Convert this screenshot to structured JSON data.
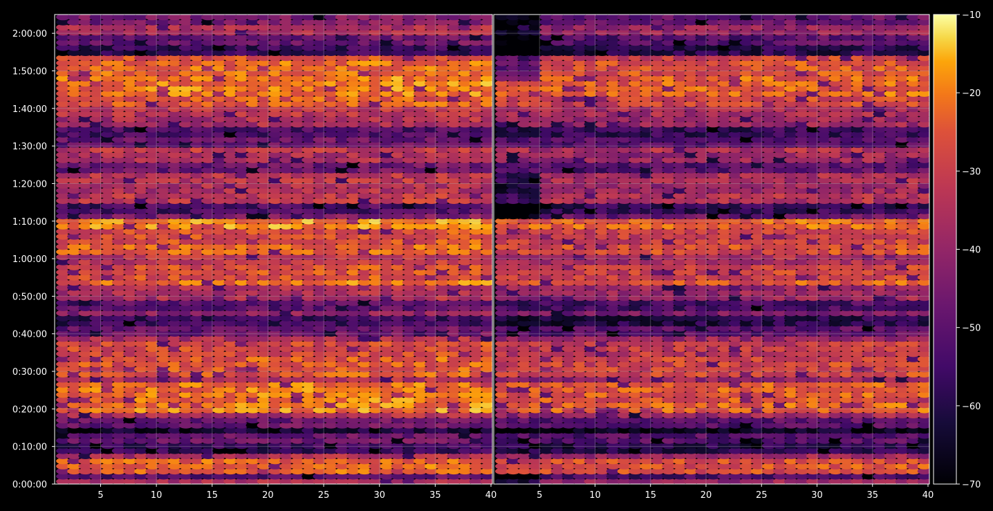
{
  "chart_data": {
    "type": "heatmap",
    "title": "",
    "panels": [
      {
        "name": "",
        "x_min": 1,
        "x_max": 40
      },
      {
        "name": "",
        "x_min": 1,
        "x_max": 40
      }
    ],
    "x_ticks": [
      5,
      10,
      15,
      20,
      25,
      30,
      35,
      40
    ],
    "y_ticks": [
      "0:00:00",
      "0:10:00",
      "0:20:00",
      "0:30:00",
      "0:40:00",
      "0:50:00",
      "1:00:00",
      "1:10:00",
      "1:20:00",
      "1:30:00",
      "1:40:00",
      "1:50:00",
      "2:00:00"
    ],
    "y_range_seconds": [
      0,
      7500
    ],
    "colorbar": {
      "colormap": "inferno",
      "ticks": [
        -10,
        -20,
        -30,
        -40,
        -50,
        -60,
        -70
      ],
      "tick_labels": [
        "−10",
        "−20",
        "−30",
        "−40",
        "−50",
        "−60",
        "−70"
      ],
      "range": [
        -70,
        -10
      ]
    },
    "grid": true,
    "colors": {
      "background": "#000000",
      "grid": "#b0b0b0",
      "axis": "#ffffff"
    }
  }
}
